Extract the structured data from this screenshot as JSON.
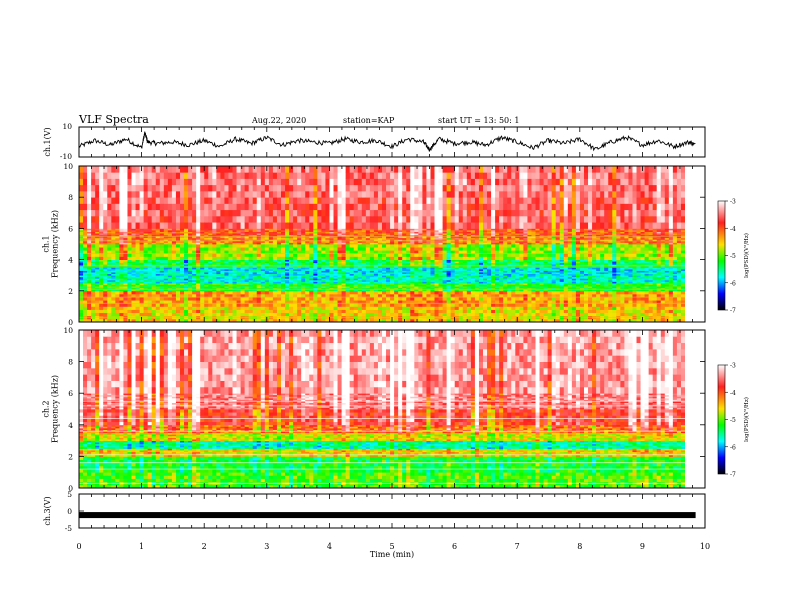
{
  "header": {
    "title": "VLF Spectra",
    "date": "Aug.22, 2020",
    "station": "station=KAP",
    "start": "start UT = 13: 50: 1"
  },
  "colorbar": {
    "label": "log(PSD)(V²/Hz)",
    "ticks": [
      "-3",
      "-4",
      "-5",
      "-6",
      "-7"
    ],
    "colors": [
      "#ffffff",
      "#ff2020",
      "#ffe000",
      "#00ff00",
      "#00ffff",
      "#0000ff",
      "#000000"
    ]
  },
  "chart_data": [
    {
      "type": "line",
      "name": "ch1-waveform",
      "ylabel": "ch.1(V)",
      "ylim": [
        -10,
        10
      ],
      "yticks": [
        "10",
        "-10"
      ],
      "xlim": [
        0,
        10
      ],
      "x": [
        0.0,
        0.25,
        0.5,
        0.75,
        1.0,
        1.05,
        1.1,
        1.25,
        1.5,
        1.75,
        2.0,
        2.25,
        2.5,
        2.75,
        3.0,
        3.25,
        3.5,
        3.75,
        4.0,
        4.25,
        4.5,
        4.75,
        5.0,
        5.25,
        5.5,
        5.6,
        5.75,
        6.0,
        6.25,
        6.5,
        6.75,
        7.0,
        7.25,
        7.5,
        7.75,
        8.0,
        8.25,
        8.5,
        8.75,
        9.0,
        9.25,
        9.5,
        9.75,
        9.85
      ],
      "y": [
        -3,
        1,
        -2,
        2,
        -4,
        6,
        0,
        -1,
        0,
        -2,
        1,
        -3,
        2,
        -1,
        3,
        -2,
        1,
        0,
        -1,
        2,
        0,
        1,
        -3,
        2,
        0,
        -5,
        2,
        -1,
        0,
        -2,
        3,
        0,
        -4,
        1,
        -1,
        2,
        -5,
        0,
        3,
        -2,
        1,
        -3,
        0,
        -2
      ]
    },
    {
      "type": "heatmap",
      "name": "ch1-spectrogram",
      "ylabel": "ch.1\nFrequency (kHz)",
      "xlim": [
        0,
        10
      ],
      "ylim": [
        0,
        10
      ],
      "yticks": [
        "0",
        "2",
        "4",
        "6",
        "8",
        "10"
      ],
      "zlabel": "log(PSD)(V²/Hz)",
      "zlim": [
        -7,
        -3
      ],
      "freq_bands_khz": [
        0,
        1,
        2,
        2.5,
        3,
        3.5,
        4,
        5,
        5.5,
        6,
        8,
        10
      ],
      "band_log_psd": [
        -4.6,
        -4.4,
        -5.2,
        -5.7,
        -5.8,
        -5.4,
        -4.9,
        -4.3,
        -4.1,
        -3.7,
        -3.6
      ]
    },
    {
      "type": "heatmap",
      "name": "ch2-spectrogram",
      "ylabel": "ch.2\nFrequency (kHz)",
      "xlim": [
        0,
        10
      ],
      "ylim": [
        0,
        10
      ],
      "yticks": [
        "0",
        "2",
        "4",
        "6",
        "8",
        "10"
      ],
      "zlabel": "log(PSD)(V²/Hz)",
      "zlim": [
        -7,
        -3
      ],
      "freq_bands_khz": [
        0,
        1,
        2,
        2.5,
        3,
        3.5,
        4,
        5,
        5.5,
        6,
        8,
        10
      ],
      "band_log_psd": [
        -5.1,
        -5.3,
        -4.6,
        -5.6,
        -4.7,
        -4.2,
        -3.9,
        -3.6,
        -3.5,
        -3.4,
        -3.4
      ]
    },
    {
      "type": "line",
      "name": "ch3-waveform",
      "ylabel": "ch.3(V)",
      "ylim": [
        -5,
        5
      ],
      "yticks": [
        "5",
        "0",
        "-5"
      ],
      "xlim": [
        0,
        10
      ],
      "x": [
        0,
        9.85
      ],
      "y": [
        -1.2,
        -1.2
      ]
    }
  ],
  "xaxis": {
    "label": "Time (min)",
    "ticks": [
      "0",
      "1",
      "2",
      "3",
      "4",
      "5",
      "6",
      "7",
      "8",
      "9",
      "10"
    ]
  }
}
